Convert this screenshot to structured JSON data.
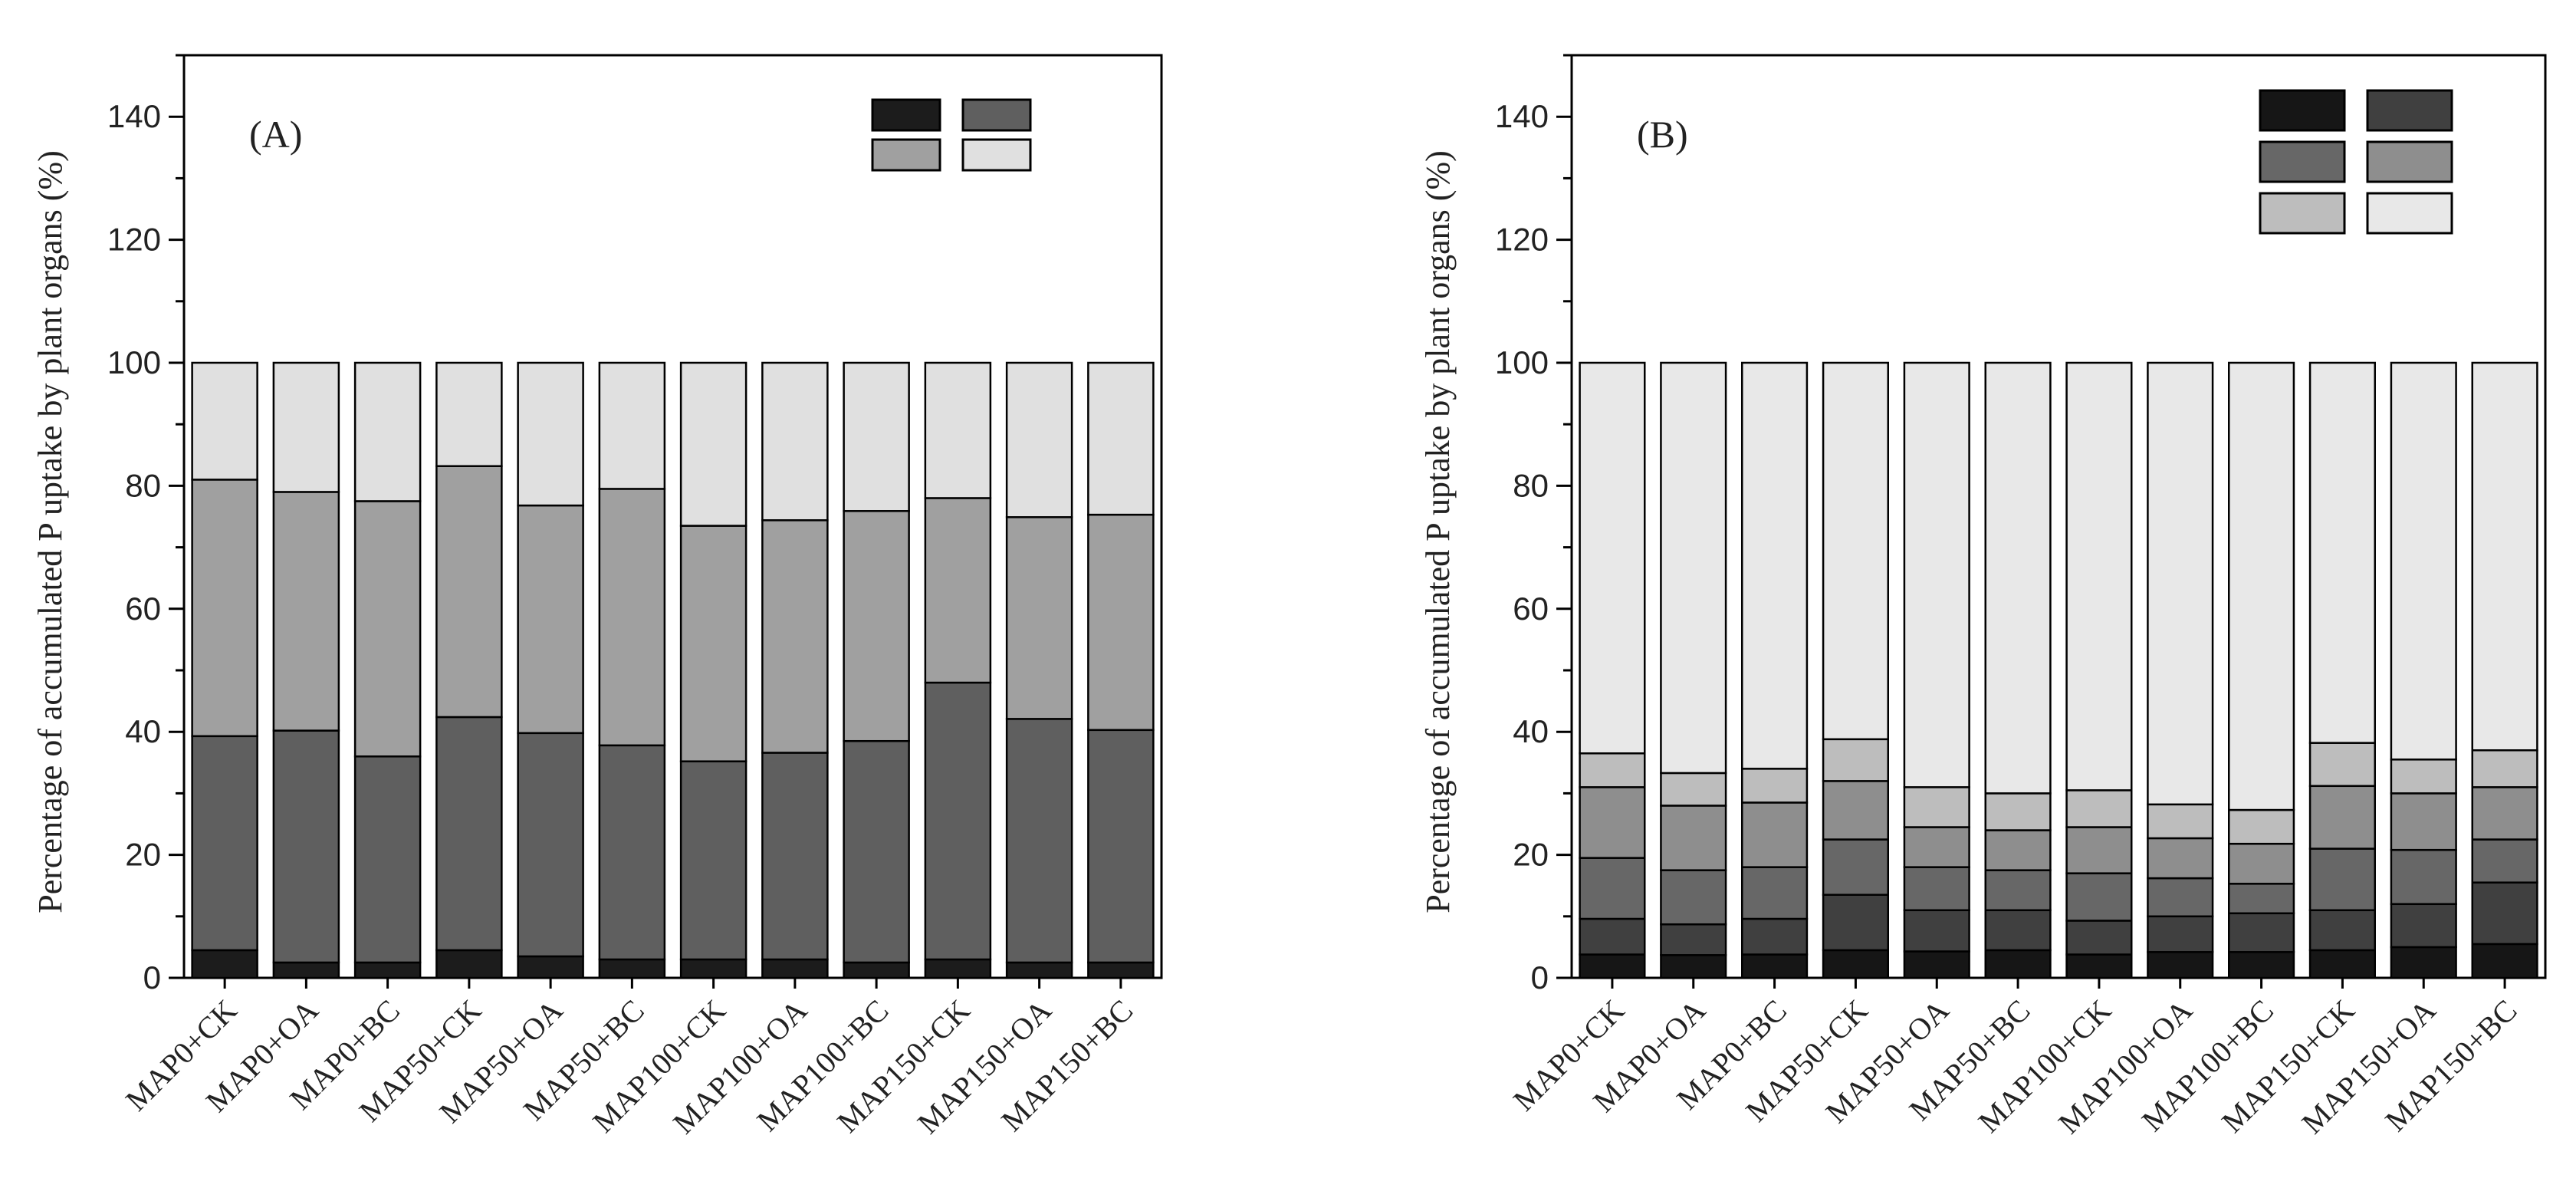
{
  "chart_data": [
    {
      "type": "bar",
      "stacked": true,
      "panel_label": "(A)",
      "ylabel": "Percentage of accumulated P uptake by plant organs (%)",
      "ylim": [
        0,
        150
      ],
      "yticks": [
        0,
        20,
        40,
        60,
        80,
        100,
        120,
        140
      ],
      "categories": [
        "MAP0+CK",
        "MAP0+OA",
        "MAP0+BC",
        "MAP50+CK",
        "MAP50+OA",
        "MAP50+BC",
        "MAP100+CK",
        "MAP100+OA",
        "MAP100+BC",
        "MAP150+CK",
        "MAP150+OA",
        "MAP150+BC"
      ],
      "series": [
        {
          "name": "",
          "color": "#1c1c1c",
          "values": [
            4.5,
            2.5,
            2.5,
            4.5,
            3.5,
            3.0,
            3.0,
            3.0,
            2.5,
            3.0,
            2.5,
            2.5
          ]
        },
        {
          "name": "",
          "color": "#5f5f5f",
          "values": [
            34.8,
            37.7,
            33.5,
            37.9,
            36.3,
            34.8,
            32.2,
            33.6,
            36.0,
            45.0,
            39.6,
            37.8
          ]
        },
        {
          "name": "",
          "color": "#a0a0a0",
          "values": [
            41.7,
            38.8,
            41.5,
            40.8,
            37.0,
            41.7,
            38.3,
            37.8,
            37.4,
            30.0,
            32.8,
            35.0
          ]
        },
        {
          "name": "",
          "color": "#e0e0e0",
          "values": [
            19.0,
            21.0,
            22.5,
            16.8,
            23.2,
            20.5,
            26.5,
            25.6,
            24.1,
            22.0,
            25.1,
            24.7
          ]
        }
      ]
    },
    {
      "type": "bar",
      "stacked": true,
      "panel_label": "(B)",
      "ylabel": "Percentage of accumulated P uptake by plant organs (%)",
      "ylim": [
        0,
        150
      ],
      "yticks": [
        0,
        20,
        40,
        60,
        80,
        100,
        120,
        140
      ],
      "categories": [
        "MAP0+CK",
        "MAP0+OA",
        "MAP0+BC",
        "MAP50+CK",
        "MAP50+OA",
        "MAP50+BC",
        "MAP100+CK",
        "MAP100+OA",
        "MAP100+BC",
        "MAP150+CK",
        "MAP150+OA",
        "MAP150+BC"
      ],
      "series": [
        {
          "name": "",
          "color": "#161616",
          "values": [
            3.8,
            3.7,
            3.8,
            4.5,
            4.3,
            4.5,
            3.8,
            4.2,
            4.2,
            4.5,
            5.0,
            5.5
          ]
        },
        {
          "name": "",
          "color": "#404040",
          "values": [
            5.8,
            5.0,
            5.8,
            9.0,
            6.7,
            6.5,
            5.5,
            5.8,
            6.3,
            6.5,
            7.0,
            10.0
          ]
        },
        {
          "name": "",
          "color": "#676767",
          "values": [
            9.9,
            8.8,
            8.4,
            9.0,
            7.0,
            6.5,
            7.7,
            6.2,
            4.8,
            10.0,
            8.8,
            7.0
          ]
        },
        {
          "name": "",
          "color": "#8e8e8e",
          "values": [
            11.5,
            10.5,
            10.5,
            9.5,
            6.5,
            6.5,
            7.5,
            6.5,
            6.5,
            10.2,
            9.2,
            8.5
          ]
        },
        {
          "name": "",
          "color": "#bdbdbd",
          "values": [
            5.5,
            5.3,
            5.5,
            6.8,
            6.5,
            6.0,
            6.0,
            5.5,
            5.5,
            7.0,
            5.5,
            6.0
          ]
        },
        {
          "name": "",
          "color": "#e8e8e8",
          "values": [
            63.5,
            66.7,
            66.0,
            61.2,
            69.0,
            70.0,
            69.5,
            71.8,
            72.7,
            61.8,
            64.5,
            63.0
          ]
        }
      ]
    }
  ]
}
